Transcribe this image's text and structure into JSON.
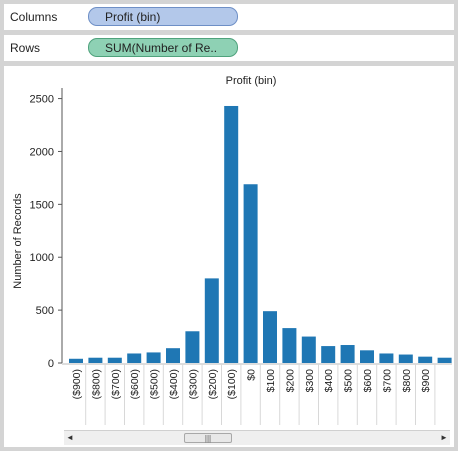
{
  "shelves": {
    "columns": {
      "label": "Columns",
      "pill": "Profit (bin)"
    },
    "rows": {
      "label": "Rows",
      "pill": "SUM(Number of Re.."
    }
  },
  "colors": {
    "bar": "#1f77b4",
    "axis": "#555555"
  },
  "scrollbar": {
    "thumb_glyph": "|||",
    "left_arrow": "◄",
    "right_arrow": "►"
  },
  "chart_data": {
    "type": "bar",
    "title": "Profit (bin)",
    "xlabel": "",
    "ylabel": "Number of Records",
    "ylim": [
      0,
      2600
    ],
    "yticks": [
      0,
      500,
      1000,
      1500,
      2000,
      2500
    ],
    "categories": [
      "($900)",
      "($800)",
      "($700)",
      "($600)",
      "($500)",
      "($400)",
      "($300)",
      "($200)",
      "($100)",
      "$0",
      "$100",
      "$200",
      "$300",
      "$400",
      "$500",
      "$600",
      "$700",
      "$800",
      "$900",
      ""
    ],
    "values": [
      40,
      50,
      50,
      90,
      100,
      140,
      300,
      800,
      2430,
      1690,
      490,
      330,
      250,
      160,
      170,
      120,
      90,
      80,
      60,
      50
    ]
  }
}
